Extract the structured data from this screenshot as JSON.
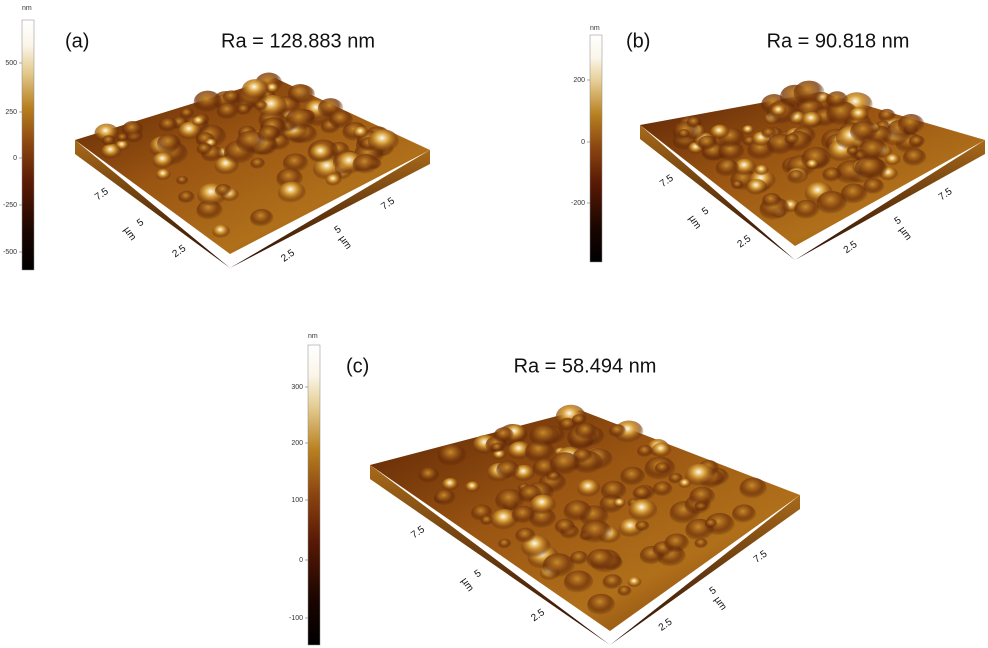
{
  "panels": [
    {
      "label": "(a)",
      "title": "Ra = 128.883 nm",
      "colorbar": {
        "unit": "nm",
        "ticks": [
          "500",
          "250",
          "0",
          "-250",
          "-500"
        ]
      },
      "left_axis": {
        "ticks": [
          "7.5",
          "5",
          "2.5"
        ],
        "unit": "µm"
      },
      "right_axis": {
        "ticks": [
          "2.5",
          "5",
          "7.5"
        ],
        "unit": "µm"
      }
    },
    {
      "label": "(b)",
      "title": "Ra = 90.818 nm",
      "colorbar": {
        "unit": "nm",
        "ticks": [
          "200",
          "0",
          "-200"
        ]
      },
      "left_axis": {
        "ticks": [
          "7.5",
          "5",
          "2.5"
        ],
        "unit": "µm"
      },
      "right_axis": {
        "ticks": [
          "2.5",
          "5",
          "7.5"
        ],
        "unit": "µm"
      }
    },
    {
      "label": "(c)",
      "title": "Ra = 58.494 nm",
      "colorbar": {
        "unit": "nm",
        "ticks": [
          "300",
          "200",
          "100",
          "0",
          "-100"
        ]
      },
      "left_axis": {
        "ticks": [
          "7.5",
          "5",
          "2.5"
        ],
        "unit": "µm"
      },
      "right_axis": {
        "ticks": [
          "2.5",
          "5",
          "7.5"
        ],
        "unit": "µm"
      }
    }
  ]
}
